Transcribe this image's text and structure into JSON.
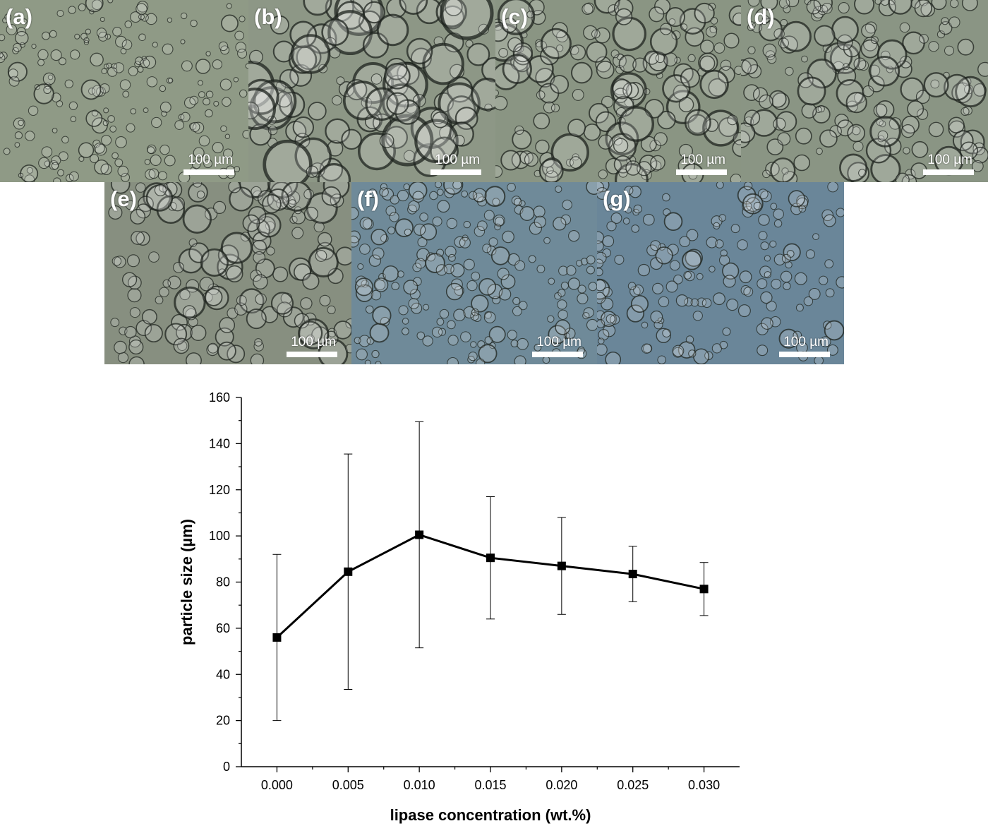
{
  "panels": [
    {
      "label": "(a)",
      "scale": "100 µm",
      "tint": "#8f9a86"
    },
    {
      "label": "(b)",
      "scale": "100 µm",
      "tint": "#8d9786"
    },
    {
      "label": "(c)",
      "scale": "100 µm",
      "tint": "#8a9583"
    },
    {
      "label": "(d)",
      "scale": "100 µm",
      "tint": "#8a9584"
    },
    {
      "label": "(e)",
      "scale": "100 µm",
      "tint": "#878f80"
    },
    {
      "label": "(f)",
      "scale": "100 µm",
      "tint": "#6f8a99"
    },
    {
      "label": "(g)",
      "scale": "100 µm",
      "tint": "#6a8699"
    }
  ],
  "chart_data": {
    "type": "line",
    "title": "",
    "xlabel": "lipase concentration (wt.%)",
    "ylabel": "particle size (µm)",
    "x": [
      0.0,
      0.005,
      0.01,
      0.015,
      0.02,
      0.025,
      0.03
    ],
    "x_tick_labels": [
      "0.000",
      "0.005",
      "0.010",
      "0.015",
      "0.020",
      "0.025",
      "0.030"
    ],
    "series": [
      {
        "values": [
          56,
          84.5,
          100.5,
          90.5,
          87,
          83.5,
          77
        ],
        "error": [
          36,
          51,
          49,
          26.5,
          21,
          12,
          11.5
        ],
        "marker": "square",
        "color": "#000000"
      }
    ],
    "xlim": [
      -0.0025,
      0.0325
    ],
    "ylim": [
      0,
      160
    ],
    "y_ticks": [
      0,
      20,
      40,
      60,
      80,
      100,
      120,
      140,
      160
    ],
    "grid": false,
    "legend": "none"
  }
}
